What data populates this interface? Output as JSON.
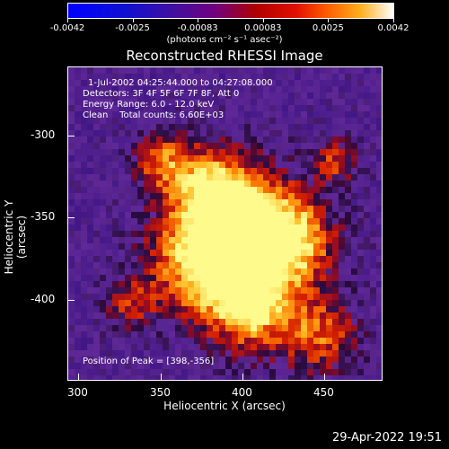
{
  "colorbar": {
    "ticks": [
      "-0.0042",
      "-0.0025",
      "-0.00083",
      "0.00083",
      "0.0025",
      "0.0042"
    ],
    "units": "(photons cm⁻² s⁻¹ asec⁻²)"
  },
  "title": "Reconstructed RHESSI Image",
  "info": {
    "time_range": "1-Jul-2002 04:25:44.000 to 04:27:08.000",
    "detectors": "Detectors: 3F 4F 5F 6F 7F 8F, Att 0",
    "energy": "Energy Range: 6.0 - 12.0 keV",
    "clean": "Clean    Total counts: 6.60E+03",
    "peak": "Position of Peak = [398,-356]"
  },
  "axes": {
    "xlabel": "Heliocentric X (arcsec)",
    "ylabel": "Heliocentric Y (arcsec)",
    "xticks": [
      "300",
      "350",
      "400",
      "450"
    ],
    "yticks": [
      "-300",
      "-350",
      "-400"
    ]
  },
  "footer": {
    "date": "29-Apr-2022 19:51"
  },
  "colors": {
    "background": "#000000",
    "low": "#5020a0",
    "mid": "#c01010",
    "high": "#fff060"
  }
}
